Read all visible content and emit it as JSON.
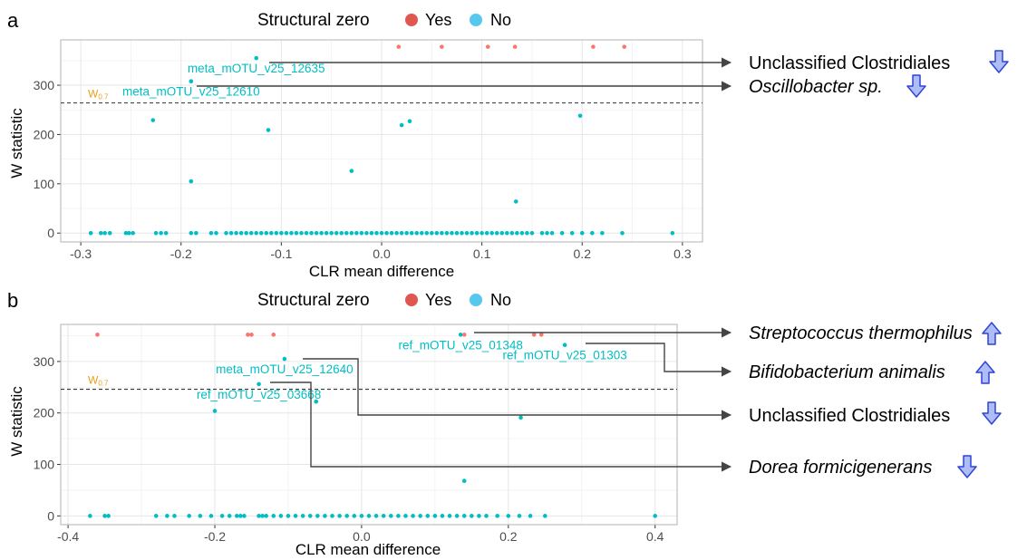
{
  "legend": {
    "title": "Structural zero",
    "items": [
      {
        "label": "Yes",
        "color": "#e0574f"
      },
      {
        "label": "No",
        "color": "#56c8ef"
      }
    ]
  },
  "colors": {
    "yes_point": "#f8766d",
    "no_point": "#00bfc4",
    "label_text": "#00bfc4",
    "threshold_label": "#e6a117",
    "arrow_fill": "#aebdf5",
    "arrow_stroke": "#2f45d6"
  },
  "chart_data": [
    {
      "panel": "a",
      "type": "scatter",
      "xlabel": "CLR mean difference",
      "ylabel": "W statistic",
      "xlim": [
        -0.32,
        0.32
      ],
      "ylim": [
        -18,
        392
      ],
      "xticks": [
        -0.3,
        -0.2,
        -0.1,
        0.0,
        0.1,
        0.2,
        0.3
      ],
      "xtick_labels": [
        "-0.3",
        "-0.2",
        "-0.1",
        "0.0",
        "0.1",
        "0.2",
        "0.3"
      ],
      "yticks": [
        0,
        100,
        200,
        300
      ],
      "threshold": {
        "label": "W",
        "subscript": "0.7",
        "y": 264
      },
      "yes_points": [
        [
          0.017,
          378
        ],
        [
          0.06,
          378
        ],
        [
          0.106,
          378
        ],
        [
          0.133,
          378
        ],
        [
          0.211,
          378
        ],
        [
          0.242,
          378
        ]
      ],
      "no_points": [
        [
          -0.125,
          355
        ],
        [
          -0.19,
          308
        ],
        [
          -0.228,
          229
        ],
        [
          -0.113,
          209
        ],
        [
          -0.19,
          105
        ],
        [
          -0.03,
          126
        ],
        [
          0.02,
          219
        ],
        [
          0.028,
          227
        ],
        [
          0.198,
          238
        ],
        [
          0.134,
          64
        ]
      ],
      "zero_x": [
        -0.29,
        -0.28,
        -0.276,
        -0.271,
        -0.255,
        -0.252,
        -0.248,
        -0.225,
        -0.22,
        -0.215,
        -0.19,
        -0.185,
        -0.17,
        -0.165,
        -0.155,
        -0.15,
        -0.145,
        -0.14,
        -0.135,
        -0.13,
        -0.125,
        -0.12,
        -0.115,
        -0.11,
        -0.105,
        -0.1,
        -0.095,
        -0.09,
        -0.085,
        -0.08,
        -0.075,
        -0.07,
        -0.065,
        -0.06,
        -0.055,
        -0.05,
        -0.045,
        -0.04,
        -0.035,
        -0.03,
        -0.025,
        -0.02,
        -0.015,
        -0.01,
        -0.005,
        0.0,
        0.005,
        0.01,
        0.015,
        0.02,
        0.025,
        0.03,
        0.035,
        0.04,
        0.045,
        0.05,
        0.055,
        0.06,
        0.065,
        0.07,
        0.075,
        0.08,
        0.085,
        0.09,
        0.095,
        0.1,
        0.105,
        0.11,
        0.115,
        0.12,
        0.125,
        0.13,
        0.135,
        0.14,
        0.145,
        0.15,
        0.16,
        0.165,
        0.17,
        0.18,
        0.19,
        0.2,
        0.21,
        0.22,
        0.24,
        0.29
      ],
      "labels": [
        {
          "text": "meta_mOTU_v25_12635",
          "x": -0.125,
          "y": 355
        },
        {
          "text": "meta_mOTU_v25_12610",
          "x": -0.19,
          "y": 308
        }
      ],
      "annotations": [
        {
          "text": "Unclassified Clostridiales",
          "italic": false,
          "direction": "down"
        },
        {
          "text": "Oscillobacter sp.",
          "italic": true,
          "direction": "down"
        }
      ]
    },
    {
      "panel": "b",
      "type": "scatter",
      "xlabel": "CLR mean difference",
      "ylabel": "W statistic",
      "xlim": [
        -0.41,
        0.43
      ],
      "ylim": [
        -17,
        372
      ],
      "xticks": [
        -0.4,
        -0.2,
        0.0,
        0.2,
        0.4
      ],
      "xtick_labels": [
        "-0.4",
        "-0.2",
        "0.0",
        "0.2",
        "0.4"
      ],
      "yticks": [
        0,
        100,
        200,
        300
      ],
      "threshold": {
        "label": "W",
        "subscript": "0.7",
        "y": 246
      },
      "yes_points": [
        [
          -0.36,
          352
        ],
        [
          -0.155,
          352
        ],
        [
          -0.15,
          352
        ],
        [
          -0.12,
          352
        ],
        [
          0.14,
          352
        ],
        [
          0.235,
          352
        ],
        [
          0.245,
          352
        ]
      ],
      "no_points": [
        [
          0.135,
          352
        ],
        [
          0.277,
          332
        ],
        [
          -0.105,
          305
        ],
        [
          -0.14,
          256
        ],
        [
          -0.2,
          204
        ],
        [
          -0.062,
          222
        ],
        [
          0.217,
          191
        ],
        [
          0.14,
          68
        ]
      ],
      "zero_x": [
        -0.37,
        -0.35,
        -0.345,
        -0.28,
        -0.265,
        -0.255,
        -0.235,
        -0.22,
        -0.205,
        -0.19,
        -0.18,
        -0.17,
        -0.165,
        -0.16,
        -0.14,
        -0.135,
        -0.13,
        -0.12,
        -0.11,
        -0.1,
        -0.09,
        -0.08,
        -0.07,
        -0.06,
        -0.05,
        -0.04,
        -0.03,
        -0.02,
        -0.01,
        0.0,
        0.01,
        0.02,
        0.03,
        0.04,
        0.05,
        0.06,
        0.07,
        0.08,
        0.09,
        0.1,
        0.11,
        0.12,
        0.13,
        0.14,
        0.15,
        0.16,
        0.17,
        0.185,
        0.2,
        0.215,
        0.23,
        0.25,
        0.4
      ],
      "labels": [
        {
          "text": "ref_mOTU_v25_01348",
          "x": 0.135,
          "y": 352
        },
        {
          "text": "ref_mOTU_v25_01303",
          "x": 0.277,
          "y": 332
        },
        {
          "text": "meta_mOTU_v25_12640",
          "x": -0.105,
          "y": 305
        },
        {
          "text": "ref_mOTU_v25_03668",
          "x": -0.14,
          "y": 256
        }
      ],
      "annotations": [
        {
          "text": "Streptococcus thermophilus",
          "italic": true,
          "direction": "up"
        },
        {
          "text": "Bifidobacterium animalis",
          "italic": true,
          "direction": "up"
        },
        {
          "text": "Unclassified Clostridiales",
          "italic": false,
          "direction": "down"
        },
        {
          "text": "Dorea formicigenerans",
          "italic": true,
          "direction": "down"
        }
      ]
    }
  ]
}
